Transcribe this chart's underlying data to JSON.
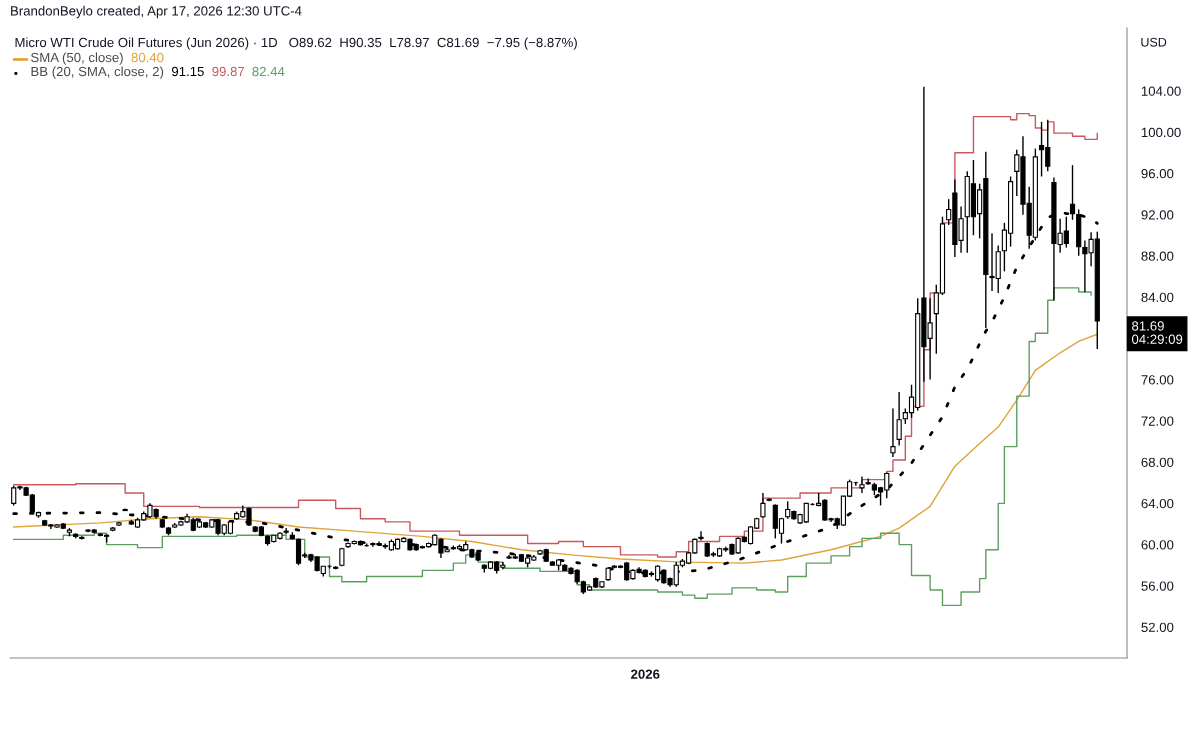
{
  "chart_data": {
    "type": "candlestick",
    "title": "Micro WTI Crude Oil Futures (Jun 2026) · 1D   O89.62  H90.35  L78.97  C81.69  −7.95 (−8.87%)",
    "ylabel": "USD",
    "annotations": [
      "BrandonBeylo created, Apr 17, 2026 12:30 UTC-4",
      "80.40",
      "91.15",
      "99.87",
      "82.44",
      "81.69",
      "04:29:09"
    ],
    "categories": [
      null,
      null,
      null,
      null,
      null,
      null,
      null,
      null,
      null,
      null,
      null,
      null,
      null,
      null,
      null,
      null,
      null,
      null,
      null,
      null,
      null,
      null,
      null,
      null,
      null,
      null,
      null,
      null,
      null,
      null,
      null,
      null,
      null,
      null,
      null,
      null,
      null,
      null,
      null,
      null,
      null,
      null,
      null,
      null,
      null,
      null,
      null,
      null,
      null,
      null,
      null,
      null,
      null,
      null,
      null,
      null,
      null,
      null,
      null,
      null,
      null,
      null,
      null,
      null,
      null,
      null,
      null,
      null,
      null,
      null,
      null,
      null,
      null,
      null,
      null,
      null,
      null,
      null,
      null,
      null,
      null,
      null,
      null,
      null,
      null,
      null,
      null,
      null,
      null,
      null,
      null,
      null,
      null,
      null,
      null,
      null,
      null,
      null,
      null,
      null,
      null,
      null,
      "2026",
      null,
      null,
      null,
      null,
      null,
      null,
      null,
      null,
      null,
      null,
      null,
      null,
      null,
      null,
      null,
      null,
      null,
      null,
      null,
      null,
      null,
      null,
      null,
      null,
      null,
      null,
      null,
      null,
      null,
      null,
      null,
      null,
      null,
      null,
      null,
      null,
      null,
      null,
      null,
      null,
      null,
      null,
      null,
      null,
      null,
      null,
      null,
      null,
      null,
      null,
      null,
      null,
      null,
      null,
      null,
      null,
      null,
      null,
      null,
      null,
      null,
      null,
      null,
      null,
      null,
      null,
      null,
      null,
      null,
      null,
      null,
      null,
      null
    ],
    "ohlc": [
      [
        64.0,
        65.7,
        63.8,
        65.5
      ],
      [
        65.5,
        65.7,
        65.3,
        65.6
      ],
      [
        65.5,
        65.6,
        64.7,
        64.8
      ],
      [
        64.8,
        64.9,
        63.1,
        63.2
      ],
      [
        62.8,
        63.2,
        62.6,
        63.1
      ],
      [
        62.3,
        62.4,
        61.8,
        61.9
      ],
      [
        61.9,
        62.0,
        61.5,
        61.8
      ],
      [
        61.7,
        62.0,
        61.6,
        61.9
      ],
      [
        62.0,
        62.1,
        61.5,
        61.6
      ],
      [
        61.2,
        61.6,
        60.8,
        61.4
      ],
      [
        61.0,
        61.1,
        60.6,
        60.8
      ],
      [
        60.7,
        60.8,
        60.5,
        60.6
      ],
      [
        61.3,
        61.5,
        61.2,
        61.4
      ],
      [
        61.4,
        61.5,
        61.1,
        61.2
      ],
      [
        61.0,
        61.1,
        60.8,
        60.9
      ],
      [
        60.8,
        61.0,
        60.2,
        60.9
      ],
      [
        61.4,
        61.7,
        61.3,
        61.6
      ],
      [
        61.9,
        62.2,
        61.8,
        62.1
      ],
      [
        63.4,
        63.5,
        63.3,
        63.3
      ],
      [
        62.2,
        62.4,
        61.9,
        62.0
      ],
      [
        61.7,
        62.6,
        61.6,
        62.4
      ],
      [
        62.4,
        63.2,
        62.3,
        63.0
      ],
      [
        62.7,
        64.0,
        62.6,
        63.8
      ],
      [
        63.4,
        63.5,
        62.5,
        62.7
      ],
      [
        62.4,
        62.5,
        61.6,
        61.7
      ],
      [
        61.6,
        61.7,
        60.9,
        61.1
      ],
      [
        61.7,
        62.1,
        61.6,
        61.9
      ],
      [
        61.9,
        62.3,
        61.8,
        62.2
      ],
      [
        62.2,
        63.0,
        62.1,
        62.7
      ],
      [
        62.4,
        62.6,
        61.3,
        61.4
      ],
      [
        61.7,
        62.3,
        61.6,
        62.2
      ],
      [
        62.1,
        62.2,
        61.6,
        61.7
      ],
      [
        61.7,
        62.4,
        61.6,
        62.4
      ],
      [
        62.4,
        62.5,
        60.9,
        61.1
      ],
      [
        61.1,
        62.0,
        60.9,
        61.9
      ],
      [
        61.1,
        62.3,
        61.0,
        62.2
      ],
      [
        62.5,
        63.2,
        62.4,
        63.0
      ],
      [
        62.7,
        63.8,
        62.6,
        63.2
      ],
      [
        63.5,
        63.6,
        61.8,
        61.9
      ],
      [
        61.7,
        61.8,
        61.2,
        61.3
      ],
      [
        61.7,
        61.8,
        60.8,
        60.9
      ],
      [
        60.8,
        60.9,
        59.9,
        60.1
      ],
      [
        60.3,
        60.9,
        60.2,
        60.9
      ],
      [
        60.6,
        61.2,
        60.5,
        61.1
      ],
      [
        61.2,
        61.6,
        61.0,
        61.3
      ],
      [
        60.9,
        61.2,
        60.5,
        60.6
      ],
      [
        60.5,
        60.6,
        58.0,
        58.2
      ],
      [
        58.9,
        59.2,
        58.7,
        59.0
      ],
      [
        59.0,
        59.1,
        58.3,
        58.5
      ],
      [
        58.8,
        58.9,
        57.4,
        57.5
      ],
      [
        57.2,
        57.9,
        56.9,
        57.9
      ],
      [
        57.9,
        58.0,
        57.7,
        57.9
      ],
      [
        57.8,
        57.9,
        57.6,
        57.7
      ],
      [
        58.0,
        59.7,
        57.9,
        59.6
      ],
      [
        59.8,
        60.2,
        59.7,
        60.1
      ],
      [
        60.1,
        60.4,
        60.0,
        60.3
      ],
      [
        60.3,
        60.4,
        59.9,
        60.0
      ],
      [
        59.9,
        60.1,
        59.8,
        59.9
      ],
      [
        60.0,
        60.2,
        59.8,
        60.1
      ],
      [
        60.1,
        60.3,
        59.9,
        60.0
      ],
      [
        59.9,
        60.1,
        59.6,
        59.8
      ],
      [
        59.5,
        60.5,
        59.4,
        60.3
      ],
      [
        59.6,
        60.6,
        59.5,
        60.5
      ],
      [
        60.3,
        60.7,
        60.2,
        60.6
      ],
      [
        60.5,
        60.6,
        59.4,
        59.5
      ],
      [
        60.0,
        60.1,
        59.4,
        59.5
      ],
      [
        59.7,
        59.9,
        59.6,
        59.8
      ],
      [
        59.8,
        60.2,
        59.7,
        60.1
      ],
      [
        60.0,
        61.0,
        59.9,
        60.9
      ],
      [
        60.5,
        60.6,
        58.7,
        59.2
      ],
      [
        59.3,
        59.6,
        59.3,
        59.5
      ],
      [
        59.6,
        59.9,
        59.5,
        59.7
      ],
      [
        59.6,
        60.0,
        59.5,
        59.8
      ],
      [
        59.5,
        60.3,
        59.4,
        60.0
      ],
      [
        59.5,
        59.6,
        58.7,
        58.8
      ],
      [
        59.2,
        59.3,
        58.4,
        58.5
      ],
      [
        58.0,
        58.1,
        57.3,
        57.7
      ],
      [
        57.7,
        58.4,
        57.6,
        58.3
      ],
      [
        58.3,
        58.4,
        57.2,
        57.5
      ],
      [
        57.8,
        58.3,
        57.6,
        58.0
      ],
      [
        58.7,
        59.0,
        58.6,
        58.8
      ],
      [
        58.8,
        59.1,
        58.6,
        58.7
      ],
      [
        59.0,
        59.1,
        58.3,
        58.4
      ],
      [
        58.2,
        58.8,
        57.8,
        58.7
      ],
      [
        58.5,
        59.0,
        58.4,
        58.8
      ],
      [
        59.1,
        59.5,
        59.0,
        59.4
      ],
      [
        59.5,
        59.6,
        58.3,
        58.4
      ],
      [
        58.3,
        58.4,
        58.0,
        58.0
      ],
      [
        58.0,
        58.6,
        57.5,
        58.5
      ],
      [
        58.0,
        58.1,
        57.5,
        57.5
      ],
      [
        57.7,
        57.8,
        57.1,
        57.2
      ],
      [
        57.5,
        57.6,
        56.2,
        56.4
      ],
      [
        56.4,
        56.5,
        55.2,
        55.4
      ],
      [
        55.6,
        56.0,
        55.5,
        55.9
      ],
      [
        56.7,
        56.8,
        55.8,
        55.9
      ],
      [
        55.9,
        56.4,
        55.8,
        56.4
      ],
      [
        56.6,
        57.8,
        56.5,
        57.7
      ],
      [
        57.8,
        58.0,
        57.7,
        57.9
      ],
      [
        57.9,
        58.0,
        57.7,
        57.8
      ],
      [
        58.2,
        58.3,
        56.5,
        56.6
      ],
      [
        56.7,
        57.6,
        56.6,
        57.5
      ],
      [
        57.6,
        57.8,
        57.2,
        57.3
      ],
      [
        57.5,
        57.6,
        56.8,
        56.9
      ],
      [
        57.1,
        57.4,
        56.9,
        57.2
      ],
      [
        56.6,
        58.0,
        56.4,
        57.9
      ],
      [
        57.5,
        57.6,
        56.2,
        56.3
      ],
      [
        56.7,
        56.8,
        55.9,
        56.1
      ],
      [
        56.1,
        58.3,
        55.9,
        58.0
      ],
      [
        58.0,
        58.6,
        57.8,
        58.4
      ],
      [
        58.2,
        59.3,
        58.1,
        59.2
      ],
      [
        59.2,
        60.6,
        59.1,
        60.5
      ],
      [
        60.7,
        61.3,
        60.4,
        60.6
      ],
      [
        60.1,
        60.2,
        58.8,
        58.9
      ],
      [
        59.0,
        59.3,
        58.8,
        59.1
      ],
      [
        58.9,
        59.7,
        58.8,
        59.6
      ],
      [
        59.5,
        59.8,
        59.3,
        59.6
      ],
      [
        60.0,
        60.1,
        59.0,
        59.1
      ],
      [
        59.2,
        60.7,
        59.1,
        60.6
      ],
      [
        60.7,
        60.8,
        60.2,
        60.3
      ],
      [
        60.1,
        61.8,
        60.0,
        61.7
      ],
      [
        61.6,
        62.6,
        61.5,
        62.5
      ],
      [
        62.7,
        65.0,
        62.6,
        64.0
      ],
      [
        64.4,
        64.5,
        64.2,
        64.3
      ],
      [
        63.8,
        63.9,
        60.6,
        61.6
      ],
      [
        61.1,
        62.6,
        60.1,
        62.5
      ],
      [
        62.7,
        64.2,
        62.5,
        63.4
      ],
      [
        63.2,
        63.3,
        62.4,
        62.5
      ],
      [
        62.1,
        63.0,
        62.0,
        62.9
      ],
      [
        62.2,
        64.0,
        62.1,
        64.0
      ],
      [
        63.9,
        64.0,
        63.8,
        63.9
      ],
      [
        63.8,
        65.0,
        63.7,
        64.0
      ],
      [
        64.3,
        64.4,
        62.3,
        62.4
      ],
      [
        62.5,
        62.6,
        62.2,
        62.4
      ],
      [
        62.5,
        62.6,
        61.5,
        61.9
      ],
      [
        61.9,
        64.7,
        61.8,
        64.7
      ],
      [
        64.7,
        66.3,
        64.6,
        66.1
      ],
      [
        66.0,
        66.1,
        65.7,
        66.0
      ],
      [
        65.5,
        66.6,
        65.0,
        65.8
      ],
      [
        66.0,
        66.4,
        65.8,
        65.9
      ],
      [
        65.8,
        66.0,
        64.8,
        65.3
      ],
      [
        65.5,
        65.6,
        63.8,
        65.1
      ],
      [
        65.3,
        67.0,
        64.5,
        66.9
      ],
      [
        68.9,
        73.2,
        68.5,
        69.5
      ],
      [
        70.2,
        74.8,
        69.6,
        72.1
      ],
      [
        72.2,
        73.2,
        71.7,
        72.8
      ],
      [
        72.8,
        75.5,
        72.3,
        74.3
      ],
      [
        73.3,
        83.9,
        73.0,
        82.4
      ],
      [
        83.9,
        104.4,
        75.8,
        79.2
      ],
      [
        80.0,
        83.9,
        76.0,
        81.5
      ],
      [
        82.4,
        85.2,
        78.5,
        84.4
      ],
      [
        84.4,
        91.8,
        84.2,
        91.1
      ],
      [
        91.5,
        93.5,
        91.0,
        92.5
      ],
      [
        94.1,
        95.4,
        87.9,
        89.1
      ],
      [
        89.5,
        92.8,
        88.3,
        91.6
      ],
      [
        91.8,
        96.2,
        88.3,
        95.7
      ],
      [
        95.0,
        97.3,
        90.0,
        91.8
      ],
      [
        92.1,
        95.0,
        89.7,
        94.4
      ],
      [
        95.5,
        98.1,
        81.0,
        86.2
      ],
      [
        86.0,
        90.2,
        84.6,
        85.9
      ],
      [
        85.8,
        89.0,
        84.4,
        88.4
      ],
      [
        88.5,
        91.2,
        86.5,
        90.5
      ],
      [
        90.2,
        95.7,
        88.9,
        95.2
      ],
      [
        96.2,
        98.3,
        93.8,
        97.8
      ],
      [
        97.6,
        99.6,
        92.0,
        93.0
      ],
      [
        93.1,
        94.7,
        88.7,
        90.0
      ],
      [
        89.8,
        98.4,
        89.5,
        97.6
      ],
      [
        98.7,
        101.0,
        95.7,
        98.3
      ],
      [
        98.5,
        101.2,
        96.2,
        96.7
      ],
      [
        95.1,
        95.6,
        83.7,
        89.2
      ],
      [
        89.1,
        91.6,
        88.3,
        90.2
      ],
      [
        90.4,
        91.8,
        88.8,
        89.2
      ],
      [
        93.0,
        96.8,
        91.5,
        92.1
      ],
      [
        92.0,
        92.5,
        88.0,
        88.9
      ],
      [
        88.8,
        89.5,
        84.5,
        88.2
      ],
      [
        88.3,
        90.3,
        87.0,
        89.6
      ],
      [
        89.62,
        90.35,
        78.97,
        81.69
      ]
    ],
    "series": [
      {
        "name": "SMA (50, close)",
        "type": "line",
        "color": "#e0a23a",
        "values": [
          61.7,
          null,
          null,
          null,
          null,
          null,
          null,
          null,
          null,
          null,
          null,
          null,
          null,
          null,
          62.1,
          null,
          null,
          null,
          null,
          null,
          null,
          null,
          62.5,
          null,
          null,
          null,
          null,
          null,
          null,
          null,
          62.7,
          null,
          null,
          null,
          null,
          null,
          null,
          null,
          62.4,
          null,
          null,
          null,
          null,
          null,
          null,
          null,
          61.7,
          null,
          null,
          null,
          null,
          null,
          null,
          null,
          null,
          61.3,
          null,
          null,
          null,
          null,
          null,
          null,
          null,
          null,
          null,
          null,
          60.8,
          null,
          null,
          null,
          null,
          null,
          null,
          null,
          60.3,
          null,
          null,
          null,
          null,
          null,
          null,
          null,
          59.5,
          null,
          null,
          null,
          null,
          null,
          null,
          null,
          59.0,
          null,
          null,
          null,
          null,
          null,
          null,
          null,
          58.6,
          null,
          null,
          null,
          null,
          null,
          null,
          null,
          null,
          null,
          58.3,
          null,
          null,
          null,
          null,
          null,
          null,
          null,
          null,
          null,
          58.2,
          null,
          null,
          null,
          null,
          null,
          58.5,
          null,
          null,
          null,
          null,
          null,
          null,
          null,
          59.5,
          null,
          null,
          null,
          null,
          null,
          null,
          null,
          60.8,
          null,
          null,
          61.6,
          null,
          null,
          null,
          null,
          63.7,
          null,
          null,
          null,
          67.6,
          null,
          null,
          null,
          69.8,
          null,
          null,
          71.4,
          null,
          null,
          74.0,
          null,
          null,
          76.9,
          null,
          null,
          null,
          78.6,
          null,
          null,
          79.7,
          null,
          null,
          80.4
        ]
      },
      {
        "name": "BB (20, SMA, close, 2)",
        "type": "line",
        "line_style": "dotted",
        "color": "#000000",
        "values": [
          63.0,
          null,
          null,
          null,
          null,
          null,
          null,
          null,
          null,
          null,
          null,
          null,
          null,
          null,
          63.1,
          null,
          null,
          null,
          null,
          null,
          null,
          null,
          null,
          null,
          null,
          null,
          null,
          null,
          null,
          null,
          62.4,
          null,
          null,
          null,
          null,
          null,
          null,
          null,
          null,
          null,
          62.1,
          null,
          null,
          null,
          null,
          null,
          61.4,
          null,
          null,
          null,
          null,
          null,
          null,
          60.5,
          null,
          null,
          null,
          null,
          null,
          60.0,
          null,
          null,
          null,
          null,
          null,
          null,
          null,
          60.0,
          null,
          null,
          null,
          null,
          59.5,
          null,
          null,
          null,
          null,
          null,
          null,
          59.2,
          null,
          null,
          null,
          null,
          null,
          58.8,
          null,
          null,
          58.5,
          null,
          null,
          null,
          null,
          null,
          null,
          57.9,
          null,
          null,
          57.4,
          null,
          null,
          null,
          null,
          57.2,
          null,
          null,
          null,
          null,
          57.4,
          null,
          null,
          57.5,
          null,
          null,
          58.0,
          null,
          null,
          58.5,
          null,
          null,
          null,
          null,
          null,
          null,
          60.1,
          null,
          null,
          null,
          null,
          null,
          null,
          null,
          61.7,
          null,
          null,
          null,
          63.4,
          null,
          null,
          null,
          null,
          65.3,
          null,
          null,
          null,
          67.9,
          null,
          null,
          null,
          null,
          72.4,
          null,
          75.3,
          null,
          77.0,
          78.2,
          79.5,
          80.7,
          81.6,
          82.8,
          84.0,
          85.5,
          86.9,
          87.9,
          null,
          null,
          90.8,
          91.7,
          null,
          92.3,
          92.1,
          null,
          92.0,
          null,
          91.6,
          91.15
        ]
      },
      {
        "type": "step",
        "color": "#c8585e",
        "values": [
          65.8,
          null,
          null,
          null,
          null,
          null,
          null,
          null,
          null,
          null,
          65.9,
          null,
          null,
          null,
          null,
          null,
          null,
          null,
          65.0,
          null,
          null,
          63.7,
          null,
          null,
          null,
          null,
          null,
          null,
          null,
          null,
          63.6,
          null,
          null,
          null,
          null,
          null,
          null,
          null,
          null,
          null,
          63.6,
          null,
          null,
          null,
          null,
          null,
          64.3,
          null,
          null,
          null,
          null,
          null,
          63.5,
          null,
          null,
          null,
          62.5,
          null,
          null,
          null,
          62.2,
          null,
          null,
          null,
          61.3,
          null,
          null,
          null,
          61.3,
          null,
          null,
          null,
          60.9,
          null,
          null,
          null,
          null,
          null,
          null,
          null,
          null,
          null,
          null,
          60.1,
          null,
          null,
          null,
          null,
          60.3,
          null,
          null,
          null,
          59.8,
          null,
          null,
          null,
          null,
          null,
          59.0,
          null,
          null,
          null,
          null,
          null,
          58.8,
          null,
          null,
          59.3,
          null,
          60.3,
          null,
          null,
          null,
          null,
          60.8,
          null,
          null,
          null,
          61.3,
          null,
          null,
          64.5,
          null,
          null,
          null,
          null,
          null,
          65.0,
          null,
          null,
          null,
          null,
          65.5,
          null,
          null,
          null,
          null,
          66.3,
          null,
          null,
          null,
          67.1,
          68.2,
          null,
          70.5,
          73.4,
          null,
          78.9,
          84.4,
          null,
          91.2,
          null,
          98.0,
          null,
          null,
          101.5,
          null,
          null,
          null,
          101.5,
          null,
          101.2,
          101.8,
          null,
          101.6,
          100.4,
          100.2,
          101.0,
          99.9,
          null,
          null,
          99.6,
          null,
          99.3,
          null,
          99.87
        ]
      },
      {
        "type": "step",
        "color": "#5e9e5e",
        "values": [
          60.5,
          null,
          null,
          null,
          null,
          null,
          null,
          null,
          60.9,
          null,
          null,
          null,
          null,
          61.1,
          null,
          60.0,
          null,
          null,
          null,
          null,
          59.7,
          null,
          null,
          null,
          60.8,
          null,
          null,
          null,
          null,
          null,
          null,
          null,
          null,
          null,
          null,
          null,
          60.9,
          null,
          null,
          null,
          null,
          null,
          null,
          null,
          60.5,
          null,
          null,
          58.8,
          null,
          null,
          null,
          56.9,
          null,
          56.4,
          null,
          null,
          null,
          56.9,
          null,
          null,
          null,
          null,
          null,
          null,
          null,
          null,
          57.5,
          null,
          null,
          null,
          null,
          58.2,
          null,
          59.0,
          null,
          58.3,
          null,
          null,
          null,
          57.7,
          null,
          null,
          null,
          null,
          null,
          57.4,
          null,
          null,
          57.4,
          null,
          null,
          56.1,
          null,
          55.6,
          null,
          null,
          null,
          null,
          null,
          null,
          null,
          null,
          null,
          null,
          55.4,
          null,
          null,
          null,
          55.1,
          null,
          54.8,
          null,
          55.2,
          null,
          null,
          null,
          55.8,
          null,
          null,
          null,
          55.6,
          null,
          null,
          55.4,
          null,
          56.9,
          null,
          null,
          58.2,
          null,
          null,
          null,
          58.9,
          null,
          null,
          59.8,
          null,
          60.6,
          null,
          null,
          61.1,
          null,
          null,
          60.0,
          null,
          57.0,
          null,
          null,
          55.6,
          null,
          54.1,
          null,
          54.1,
          55.4,
          null,
          null,
          56.7,
          59.5,
          null,
          64.0,
          69.5,
          null,
          74.4,
          null,
          79.7,
          80.5,
          null,
          83.7,
          84.9,
          null,
          null,
          null,
          84.5,
          null,
          84.2,
          null
        ]
      }
    ],
    "ylim": [
      49.0,
      110.1
    ],
    "yticks": [
      {
        "value": 52,
        "label": "52.00"
      },
      {
        "value": 56,
        "label": "56.00"
      },
      {
        "value": 60,
        "label": "60.00"
      },
      {
        "value": 64,
        "label": "64.00"
      },
      {
        "value": 68,
        "label": "68.00"
      },
      {
        "value": 72,
        "label": "72.00"
      },
      {
        "value": 76,
        "label": "76.00"
      },
      {
        "value": 84,
        "label": "84.00"
      },
      {
        "value": 88,
        "label": "88.00"
      },
      {
        "value": 92,
        "label": "92.00"
      },
      {
        "value": 96,
        "label": "96.00"
      },
      {
        "value": 100,
        "label": "100.00"
      },
      {
        "value": 104,
        "label": "104.00"
      }
    ],
    "grid": false,
    "legend": "top left"
  }
}
